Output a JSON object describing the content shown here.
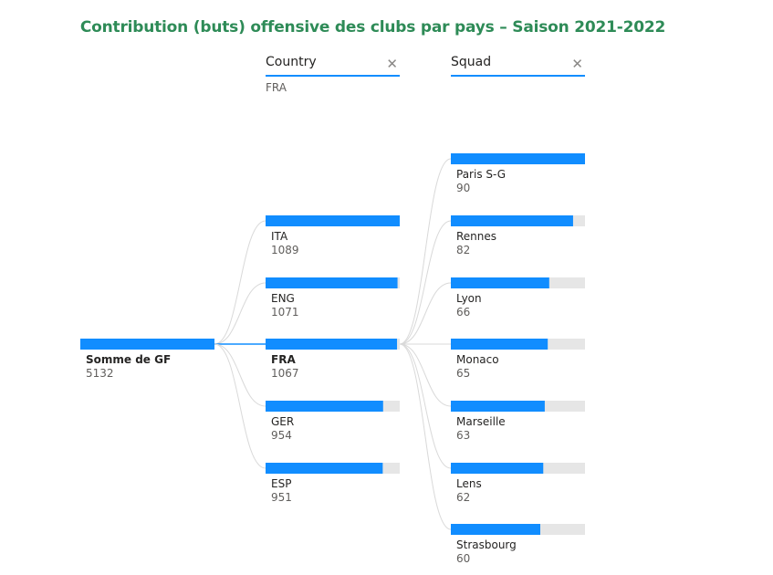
{
  "title": "Contribution (buts) offensive des clubs par pays – Saison 2021-2022",
  "colors": {
    "accent": "#118dff",
    "track": "#e6e6e6",
    "title": "#2e8b57",
    "link": "#d9d9d9"
  },
  "columns": [
    {
      "header": "Country",
      "filter": "FRA",
      "clear_icon": "close-icon"
    },
    {
      "header": "Squad",
      "filter": "",
      "clear_icon": "close-icon"
    }
  ],
  "chart_data": {
    "type": "decomposition-tree",
    "root": {
      "name": "Somme de GF",
      "value": 5132
    },
    "levels": [
      {
        "field": "Country",
        "selected": "FRA",
        "max": 1089,
        "items": [
          {
            "name": "ITA",
            "value": 1089
          },
          {
            "name": "ENG",
            "value": 1071
          },
          {
            "name": "FRA",
            "value": 1067
          },
          {
            "name": "GER",
            "value": 954
          },
          {
            "name": "ESP",
            "value": 951
          }
        ]
      },
      {
        "field": "Squad",
        "selected": "",
        "max": 90,
        "items": [
          {
            "name": "Paris S-G",
            "value": 90
          },
          {
            "name": "Rennes",
            "value": 82
          },
          {
            "name": "Lyon",
            "value": 66
          },
          {
            "name": "Monaco",
            "value": 65
          },
          {
            "name": "Marseille",
            "value": 63
          },
          {
            "name": "Lens",
            "value": 62
          },
          {
            "name": "Strasbourg",
            "value": 60
          }
        ]
      }
    ]
  }
}
